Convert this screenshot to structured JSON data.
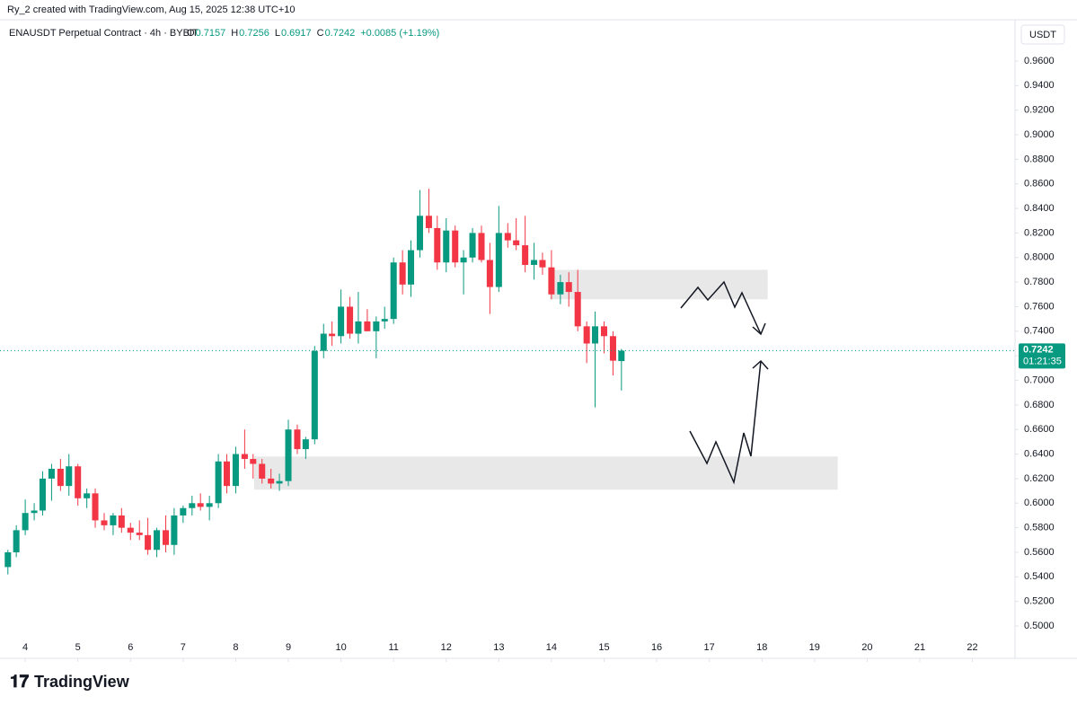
{
  "chart_data": {
    "type": "candlestick",
    "credit": "Ry_2 created with TradingView.com, Aug 15, 2025 12:38 UTC+10",
    "title": "ENAUSDT Perpetual Contract · 4h · BYBIT",
    "ohlc_labels": [
      "O",
      "H",
      "L",
      "C"
    ],
    "change": "+0.0085 (+1.19%)",
    "currency": "USDT",
    "countdown": "01:21:35",
    "brand": "TradingView",
    "up_color": "#089981",
    "down_color": "#f23645",
    "x": [
      3.67,
      3.83,
      4,
      4.17,
      4.33,
      4.5,
      4.67,
      4.83,
      5,
      5.17,
      5.33,
      5.5,
      5.67,
      5.83,
      6,
      6.17,
      6.33,
      6.5,
      6.67,
      6.83,
      7,
      7.17,
      7.33,
      7.5,
      7.67,
      7.83,
      8,
      8.17,
      8.33,
      8.5,
      8.67,
      8.83,
      9,
      9.17,
      9.33,
      9.5,
      9.67,
      9.83,
      10,
      10.17,
      10.33,
      10.5,
      10.67,
      10.83,
      11,
      11.17,
      11.33,
      11.5,
      11.67,
      11.83,
      12,
      12.17,
      12.33,
      12.5,
      12.67,
      12.83,
      13,
      13.17,
      13.33,
      13.5,
      13.67,
      13.83,
      14,
      14.17,
      14.33,
      14.5,
      14.67,
      14.83,
      15,
      15.17,
      15.33
    ],
    "open": [
      0.548,
      0.56,
      0.578,
      0.592,
      0.594,
      0.62,
      0.628,
      0.614,
      0.63,
      0.604,
      0.608,
      0.586,
      0.582,
      0.59,
      0.58,
      0.576,
      0.574,
      0.562,
      0.578,
      0.566,
      0.59,
      0.596,
      0.6,
      0.597,
      0.6,
      0.634,
      0.614,
      0.64,
      0.636,
      0.632,
      0.62,
      0.616,
      0.618,
      0.66,
      0.644,
      0.652,
      0.724,
      0.738,
      0.736,
      0.76,
      0.738,
      0.748,
      0.74,
      0.748,
      0.75,
      0.796,
      0.778,
      0.806,
      0.834,
      0.824,
      0.796,
      0.822,
      0.796,
      0.8,
      0.82,
      0.798,
      0.776,
      0.82,
      0.814,
      0.81,
      0.794,
      0.798,
      0.792,
      0.77,
      0.78,
      0.772,
      0.744,
      0.73,
      0.744,
      0.736,
      0.7157
    ],
    "high": [
      0.562,
      0.582,
      0.603,
      0.6,
      0.626,
      0.632,
      0.636,
      0.64,
      0.632,
      0.612,
      0.612,
      0.592,
      0.592,
      0.596,
      0.584,
      0.586,
      0.588,
      0.58,
      0.59,
      0.596,
      0.598,
      0.606,
      0.608,
      0.606,
      0.64,
      0.64,
      0.646,
      0.66,
      0.64,
      0.636,
      0.628,
      0.624,
      0.668,
      0.664,
      0.654,
      0.728,
      0.746,
      0.748,
      0.774,
      0.768,
      0.772,
      0.758,
      0.752,
      0.76,
      0.8,
      0.806,
      0.814,
      0.855,
      0.856,
      0.834,
      0.832,
      0.826,
      0.806,
      0.824,
      0.826,
      0.812,
      0.842,
      0.828,
      0.832,
      0.834,
      0.812,
      0.804,
      0.806,
      0.786,
      0.788,
      0.79,
      0.748,
      0.756,
      0.748,
      0.74,
      0.7256
    ],
    "low": [
      0.542,
      0.556,
      0.574,
      0.586,
      0.59,
      0.602,
      0.61,
      0.606,
      0.598,
      0.596,
      0.58,
      0.578,
      0.574,
      0.576,
      0.57,
      0.57,
      0.558,
      0.556,
      0.56,
      0.558,
      0.584,
      0.59,
      0.594,
      0.586,
      0.596,
      0.608,
      0.608,
      0.628,
      0.62,
      0.616,
      0.612,
      0.61,
      0.614,
      0.64,
      0.636,
      0.648,
      0.718,
      0.728,
      0.73,
      0.734,
      0.73,
      0.74,
      0.718,
      0.742,
      0.746,
      0.77,
      0.768,
      0.8,
      0.82,
      0.79,
      0.788,
      0.792,
      0.77,
      0.796,
      0.796,
      0.754,
      0.772,
      0.808,
      0.806,
      0.788,
      0.782,
      0.786,
      0.766,
      0.762,
      0.76,
      0.74,
      0.714,
      0.678,
      0.722,
      0.704,
      0.6917
    ],
    "close": [
      0.56,
      0.578,
      0.592,
      0.594,
      0.62,
      0.628,
      0.614,
      0.63,
      0.604,
      0.608,
      0.586,
      0.582,
      0.59,
      0.58,
      0.576,
      0.574,
      0.562,
      0.578,
      0.566,
      0.59,
      0.596,
      0.6,
      0.597,
      0.6,
      0.634,
      0.614,
      0.64,
      0.636,
      0.632,
      0.62,
      0.616,
      0.618,
      0.66,
      0.644,
      0.652,
      0.724,
      0.738,
      0.736,
      0.76,
      0.738,
      0.748,
      0.74,
      0.748,
      0.75,
      0.796,
      0.778,
      0.806,
      0.834,
      0.824,
      0.796,
      0.822,
      0.796,
      0.8,
      0.82,
      0.798,
      0.776,
      0.82,
      0.814,
      0.81,
      0.794,
      0.798,
      0.792,
      0.77,
      0.78,
      0.772,
      0.744,
      0.73,
      0.744,
      0.736,
      0.716,
      0.7242
    ],
    "zones": [
      {
        "x": [
          13.97,
          18.11
        ],
        "y": [
          0.766,
          0.79
        ]
      },
      {
        "x": [
          8.35,
          19.44
        ],
        "y": [
          0.611,
          0.638
        ]
      }
    ],
    "xlim": [
      3.52,
      22.81
    ],
    "xticks": [
      4,
      5,
      6,
      7,
      8,
      9,
      10,
      11,
      12,
      13,
      14,
      15,
      16,
      17,
      18,
      19,
      20,
      21,
      22
    ],
    "ylim": [
      0.4737,
      0.9936
    ],
    "yticks": [
      {
        "value": 0.5,
        "label": "0.5000"
      },
      {
        "value": 0.52,
        "label": "0.5200"
      },
      {
        "value": 0.54,
        "label": "0.5400"
      },
      {
        "value": 0.56,
        "label": "0.5600"
      },
      {
        "value": 0.58,
        "label": "0.5800"
      },
      {
        "value": 0.6,
        "label": "0.6000"
      },
      {
        "value": 0.62,
        "label": "0.6200"
      },
      {
        "value": 0.64,
        "label": "0.6400"
      },
      {
        "value": 0.66,
        "label": "0.6600"
      },
      {
        "value": 0.68,
        "label": "0.6800"
      },
      {
        "value": 0.7,
        "label": "0.7000"
      },
      {
        "value": 0.72,
        "label": "0.7200"
      },
      {
        "value": 0.74,
        "label": "0.7400"
      },
      {
        "value": 0.76,
        "label": "0.7600"
      },
      {
        "value": 0.78,
        "label": "0.7800"
      },
      {
        "value": 0.8,
        "label": "0.8000"
      },
      {
        "value": 0.82,
        "label": "0.8200"
      },
      {
        "value": 0.84,
        "label": "0.8400"
      },
      {
        "value": 0.86,
        "label": "0.8600"
      },
      {
        "value": 0.88,
        "label": "0.8800"
      },
      {
        "value": 0.9,
        "label": "0.9000"
      },
      {
        "value": 0.92,
        "label": "0.9200"
      },
      {
        "value": 0.94,
        "label": "0.9400"
      },
      {
        "value": 0.96,
        "label": "0.9600"
      }
    ]
  }
}
